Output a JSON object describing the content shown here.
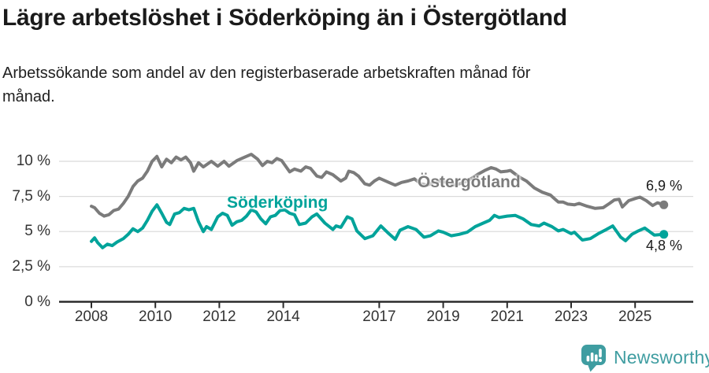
{
  "header": {
    "title": "Lägre arbetslöshet i Söderköping än i Östergötland",
    "subtitle": "Arbetssökande som andel av den registerbaserade arbetskraften månad för månad."
  },
  "footer": {
    "brand": "Newsworthy"
  },
  "colors": {
    "soderkoping": "#00A39A",
    "ostergotland": "#7B7B7B",
    "brand_teal": "#3F9DA1",
    "grid": "#DBDBDB",
    "axis": "#2B2B2B",
    "text": "#1A1A1A",
    "tick_text": "#333333"
  },
  "chart_data": {
    "type": "line",
    "title": "Lägre arbetslöshet i Söderköping än i Östergötland",
    "x_unit": "year (monthly data)",
    "grid": true,
    "legend_position": "inline-labels",
    "y_axis": {
      "range": [
        0,
        11.2
      ],
      "ticks": [
        {
          "value": 0,
          "label": "0 %"
        },
        {
          "value": 2.5,
          "label": "2,5 %"
        },
        {
          "value": 5,
          "label": "5 %"
        },
        {
          "value": 7.5,
          "label": "7,5 %"
        },
        {
          "value": 10,
          "label": "10 %"
        }
      ]
    },
    "x_axis": {
      "range": [
        2007.9,
        2026.1
      ],
      "ticks": [
        {
          "year": 2008,
          "label": "2008"
        },
        {
          "year": 2010,
          "label": "2010"
        },
        {
          "year": 2012,
          "label": "2012"
        },
        {
          "year": 2014,
          "label": "2014"
        },
        {
          "year": 2017,
          "label": "2017"
        },
        {
          "year": 2019,
          "label": "2019"
        },
        {
          "year": 2021,
          "label": "2021"
        },
        {
          "year": 2023,
          "label": "2023"
        },
        {
          "year": 2025,
          "label": "2025"
        }
      ]
    },
    "series": [
      {
        "name": "Östergötland",
        "color": "#7B7B7B",
        "end_label": "6,9 %",
        "end_value": 6.9,
        "points": [
          [
            2008.0,
            6.8
          ],
          [
            2008.1,
            6.7
          ],
          [
            2008.25,
            6.3
          ],
          [
            2008.4,
            6.1
          ],
          [
            2008.55,
            6.2
          ],
          [
            2008.7,
            6.5
          ],
          [
            2008.85,
            6.6
          ],
          [
            2009.0,
            7.0
          ],
          [
            2009.15,
            7.5
          ],
          [
            2009.3,
            8.2
          ],
          [
            2009.45,
            8.6
          ],
          [
            2009.6,
            8.8
          ],
          [
            2009.75,
            9.3
          ],
          [
            2009.9,
            10.0
          ],
          [
            2010.05,
            10.35
          ],
          [
            2010.2,
            9.6
          ],
          [
            2010.35,
            10.15
          ],
          [
            2010.5,
            9.9
          ],
          [
            2010.65,
            10.3
          ],
          [
            2010.8,
            10.1
          ],
          [
            2010.95,
            10.3
          ],
          [
            2011.1,
            9.9
          ],
          [
            2011.2,
            9.3
          ],
          [
            2011.35,
            9.9
          ],
          [
            2011.5,
            9.6
          ],
          [
            2011.75,
            10.0
          ],
          [
            2011.95,
            9.65
          ],
          [
            2012.15,
            10.0
          ],
          [
            2012.3,
            9.65
          ],
          [
            2012.55,
            10.05
          ],
          [
            2012.8,
            10.3
          ],
          [
            2013.0,
            10.5
          ],
          [
            2013.2,
            10.15
          ],
          [
            2013.35,
            9.7
          ],
          [
            2013.5,
            10.0
          ],
          [
            2013.65,
            9.9
          ],
          [
            2013.8,
            10.2
          ],
          [
            2013.95,
            10.05
          ],
          [
            2014.2,
            9.25
          ],
          [
            2014.35,
            9.45
          ],
          [
            2014.55,
            9.3
          ],
          [
            2014.7,
            9.6
          ],
          [
            2014.85,
            9.5
          ],
          [
            2015.05,
            8.95
          ],
          [
            2015.2,
            8.85
          ],
          [
            2015.35,
            9.25
          ],
          [
            2015.55,
            9.05
          ],
          [
            2015.8,
            8.6
          ],
          [
            2015.95,
            8.8
          ],
          [
            2016.05,
            9.3
          ],
          [
            2016.2,
            9.2
          ],
          [
            2016.35,
            8.95
          ],
          [
            2016.55,
            8.4
          ],
          [
            2016.7,
            8.3
          ],
          [
            2016.85,
            8.6
          ],
          [
            2017.0,
            8.8
          ],
          [
            2017.3,
            8.5
          ],
          [
            2017.5,
            8.3
          ],
          [
            2017.7,
            8.5
          ],
          [
            2017.9,
            8.6
          ],
          [
            2018.1,
            8.75
          ],
          [
            2018.3,
            8.4
          ],
          [
            2018.5,
            8.3
          ],
          [
            2018.7,
            8.5
          ],
          [
            2018.9,
            8.6
          ],
          [
            2019.1,
            8.5
          ],
          [
            2019.3,
            8.3
          ],
          [
            2019.5,
            8.4
          ],
          [
            2019.7,
            8.55
          ],
          [
            2019.9,
            8.8
          ],
          [
            2020.1,
            9.1
          ],
          [
            2020.3,
            9.35
          ],
          [
            2020.5,
            9.55
          ],
          [
            2020.65,
            9.45
          ],
          [
            2020.8,
            9.25
          ],
          [
            2021.0,
            9.3
          ],
          [
            2021.1,
            9.35
          ],
          [
            2021.25,
            9.1
          ],
          [
            2021.4,
            8.85
          ],
          [
            2021.6,
            8.6
          ],
          [
            2021.85,
            8.1
          ],
          [
            2022.1,
            7.8
          ],
          [
            2022.35,
            7.6
          ],
          [
            2022.5,
            7.3
          ],
          [
            2022.6,
            7.1
          ],
          [
            2022.75,
            7.1
          ],
          [
            2022.9,
            6.95
          ],
          [
            2023.1,
            6.9
          ],
          [
            2023.25,
            7.0
          ],
          [
            2023.5,
            6.8
          ],
          [
            2023.75,
            6.65
          ],
          [
            2024.0,
            6.7
          ],
          [
            2024.2,
            7.0
          ],
          [
            2024.35,
            7.25
          ],
          [
            2024.5,
            7.3
          ],
          [
            2024.6,
            6.75
          ],
          [
            2024.8,
            7.2
          ],
          [
            2025.0,
            7.35
          ],
          [
            2025.15,
            7.45
          ],
          [
            2025.35,
            7.2
          ],
          [
            2025.55,
            6.85
          ],
          [
            2025.7,
            7.05
          ],
          [
            2025.9,
            6.9
          ]
        ]
      },
      {
        "name": "Söderköping",
        "color": "#00A39A",
        "end_label": "4,8 %",
        "end_value": 4.8,
        "points": [
          [
            2008.0,
            4.3
          ],
          [
            2008.1,
            4.55
          ],
          [
            2008.2,
            4.2
          ],
          [
            2008.35,
            3.85
          ],
          [
            2008.5,
            4.1
          ],
          [
            2008.65,
            4.0
          ],
          [
            2008.8,
            4.25
          ],
          [
            2009.0,
            4.5
          ],
          [
            2009.15,
            4.8
          ],
          [
            2009.3,
            5.2
          ],
          [
            2009.45,
            5.0
          ],
          [
            2009.6,
            5.25
          ],
          [
            2009.75,
            5.8
          ],
          [
            2009.9,
            6.45
          ],
          [
            2010.05,
            6.9
          ],
          [
            2010.2,
            6.3
          ],
          [
            2010.35,
            5.65
          ],
          [
            2010.45,
            5.5
          ],
          [
            2010.6,
            6.25
          ],
          [
            2010.75,
            6.35
          ],
          [
            2010.9,
            6.65
          ],
          [
            2011.05,
            6.55
          ],
          [
            2011.2,
            6.65
          ],
          [
            2011.35,
            5.7
          ],
          [
            2011.5,
            5.0
          ],
          [
            2011.6,
            5.35
          ],
          [
            2011.75,
            5.15
          ],
          [
            2011.95,
            6.05
          ],
          [
            2012.1,
            6.3
          ],
          [
            2012.25,
            6.15
          ],
          [
            2012.4,
            5.45
          ],
          [
            2012.55,
            5.7
          ],
          [
            2012.7,
            5.8
          ],
          [
            2012.85,
            6.1
          ],
          [
            2013.0,
            6.55
          ],
          [
            2013.15,
            6.4
          ],
          [
            2013.3,
            5.9
          ],
          [
            2013.45,
            5.55
          ],
          [
            2013.6,
            6.05
          ],
          [
            2013.75,
            6.15
          ],
          [
            2013.9,
            6.5
          ],
          [
            2014.05,
            6.55
          ],
          [
            2014.2,
            6.3
          ],
          [
            2014.35,
            6.2
          ],
          [
            2014.5,
            5.5
          ],
          [
            2014.7,
            5.6
          ],
          [
            2014.9,
            6.05
          ],
          [
            2015.05,
            6.25
          ],
          [
            2015.3,
            5.6
          ],
          [
            2015.55,
            5.15
          ],
          [
            2015.65,
            5.4
          ],
          [
            2015.8,
            5.3
          ],
          [
            2016.0,
            6.05
          ],
          [
            2016.15,
            5.9
          ],
          [
            2016.3,
            5.05
          ],
          [
            2016.55,
            4.5
          ],
          [
            2016.8,
            4.7
          ],
          [
            2017.05,
            5.4
          ],
          [
            2017.3,
            4.85
          ],
          [
            2017.5,
            4.45
          ],
          [
            2017.65,
            5.1
          ],
          [
            2017.9,
            5.35
          ],
          [
            2018.15,
            5.15
          ],
          [
            2018.4,
            4.6
          ],
          [
            2018.6,
            4.7
          ],
          [
            2018.85,
            5.05
          ],
          [
            2019.0,
            4.95
          ],
          [
            2019.25,
            4.7
          ],
          [
            2019.5,
            4.8
          ],
          [
            2019.75,
            4.95
          ],
          [
            2020.0,
            5.35
          ],
          [
            2020.25,
            5.6
          ],
          [
            2020.45,
            5.8
          ],
          [
            2020.6,
            6.15
          ],
          [
            2020.75,
            6.0
          ],
          [
            2021.0,
            6.1
          ],
          [
            2021.25,
            6.15
          ],
          [
            2021.5,
            5.9
          ],
          [
            2021.75,
            5.5
          ],
          [
            2022.0,
            5.4
          ],
          [
            2022.15,
            5.6
          ],
          [
            2022.4,
            5.35
          ],
          [
            2022.6,
            5.05
          ],
          [
            2022.75,
            5.15
          ],
          [
            2023.0,
            4.85
          ],
          [
            2023.1,
            4.95
          ],
          [
            2023.35,
            4.4
          ],
          [
            2023.6,
            4.5
          ],
          [
            2023.85,
            4.85
          ],
          [
            2024.1,
            5.15
          ],
          [
            2024.3,
            5.4
          ],
          [
            2024.55,
            4.6
          ],
          [
            2024.7,
            4.35
          ],
          [
            2024.9,
            4.8
          ],
          [
            2025.1,
            5.05
          ],
          [
            2025.3,
            5.25
          ],
          [
            2025.6,
            4.75
          ],
          [
            2025.9,
            4.8
          ]
        ]
      }
    ]
  }
}
